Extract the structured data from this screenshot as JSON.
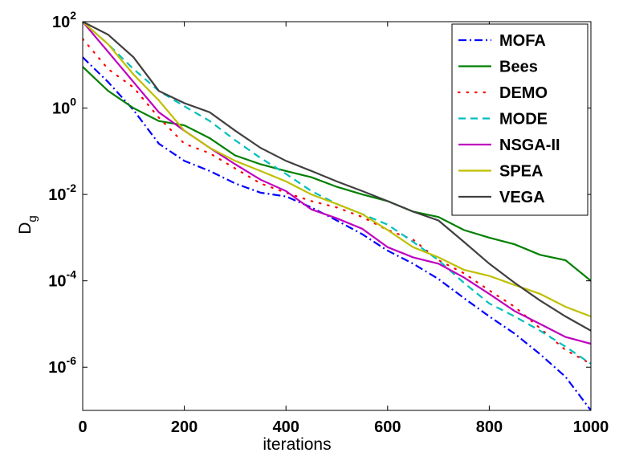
{
  "chart_data": {
    "type": "line",
    "xlabel": "iterations",
    "ylabel": "D",
    "ylabel_subscript": "g",
    "xlim": [
      0,
      1000
    ],
    "ylim": [
      1e-07,
      100
    ],
    "yscale": "log",
    "xticks": [
      "0",
      "200",
      "400",
      "600",
      "800",
      "1000"
    ],
    "yticks": [
      {
        "mantissa": "10",
        "exp": "2"
      },
      {
        "mantissa": "10",
        "exp": "0"
      },
      {
        "mantissa": "10",
        "exp": "-2"
      },
      {
        "mantissa": "10",
        "exp": "-4"
      },
      {
        "mantissa": "10",
        "exp": "-6"
      }
    ],
    "grid": false,
    "legend_position": "top-right",
    "series": [
      {
        "name": "MOFA",
        "color": "#0000ff",
        "style": "dashdot",
        "x": [
          0,
          50,
          100,
          150,
          200,
          250,
          300,
          350,
          400,
          450,
          500,
          550,
          600,
          650,
          700,
          750,
          800,
          850,
          900,
          950,
          1000
        ],
        "y": [
          15,
          4,
          0.9,
          0.15,
          0.06,
          0.035,
          0.018,
          0.011,
          0.009,
          0.005,
          0.0025,
          0.0012,
          0.0005,
          0.00025,
          0.00011,
          4e-05,
          1.5e-05,
          6e-06,
          2e-06,
          6e-07,
          1e-07
        ]
      },
      {
        "name": "Bees",
        "color": "#008000",
        "style": "solid",
        "x": [
          0,
          50,
          100,
          150,
          200,
          250,
          300,
          350,
          400,
          450,
          500,
          550,
          600,
          650,
          700,
          750,
          800,
          850,
          900,
          950,
          1000
        ],
        "y": [
          9,
          2.5,
          1,
          0.5,
          0.4,
          0.2,
          0.08,
          0.05,
          0.035,
          0.025,
          0.015,
          0.01,
          0.007,
          0.004,
          0.003,
          0.0015,
          0.001,
          0.0007,
          0.0004,
          0.0003,
          0.0001
        ]
      },
      {
        "name": "DEMO",
        "color": "#ff0000",
        "style": "dotted",
        "x": [
          0,
          50,
          100,
          150,
          200,
          250,
          300,
          350,
          400,
          450,
          500,
          550,
          600,
          650,
          700,
          750,
          800,
          850,
          900,
          950,
          1000
        ],
        "y": [
          40,
          8,
          3,
          0.6,
          0.15,
          0.09,
          0.04,
          0.018,
          0.011,
          0.007,
          0.005,
          0.003,
          0.0015,
          0.0009,
          0.0003,
          0.00015,
          6e-05,
          2.5e-05,
          8e-06,
          2.5e-06,
          1.2e-06
        ]
      },
      {
        "name": "MODE",
        "color": "#00bfbf",
        "style": "dashed",
        "x": [
          0,
          50,
          100,
          150,
          200,
          250,
          300,
          350,
          400,
          450,
          500,
          550,
          600,
          650,
          700,
          750,
          800,
          850,
          900,
          950,
          1000
        ],
        "y": [
          100,
          30,
          8,
          2.5,
          1.1,
          0.5,
          0.18,
          0.07,
          0.03,
          0.012,
          0.006,
          0.0035,
          0.002,
          0.0008,
          0.0003,
          9e-05,
          3e-05,
          1.5e-05,
          7e-06,
          3e-06,
          1.2e-06
        ]
      },
      {
        "name": "NSGA-II",
        "color": "#bf00bf",
        "style": "solid",
        "x": [
          0,
          50,
          100,
          150,
          200,
          250,
          300,
          350,
          400,
          450,
          500,
          550,
          600,
          650,
          700,
          750,
          800,
          850,
          900,
          950,
          1000
        ],
        "y": [
          100,
          20,
          4,
          0.8,
          0.3,
          0.12,
          0.05,
          0.022,
          0.012,
          0.0045,
          0.0028,
          0.0016,
          0.0006,
          0.00035,
          0.00025,
          0.00012,
          5e-05,
          2e-05,
          1e-05,
          5e-06,
          3.5e-06
        ]
      },
      {
        "name": "SPEA",
        "color": "#bfbf00",
        "style": "solid",
        "x": [
          0,
          50,
          100,
          150,
          200,
          250,
          300,
          350,
          400,
          450,
          500,
          550,
          600,
          650,
          700,
          750,
          800,
          850,
          900,
          950,
          1000
        ],
        "y": [
          100,
          30,
          6,
          1.5,
          0.3,
          0.12,
          0.06,
          0.035,
          0.02,
          0.01,
          0.006,
          0.0035,
          0.0015,
          0.0006,
          0.00035,
          0.00018,
          0.00013,
          8e-05,
          5e-05,
          2.5e-05,
          1.5e-05
        ]
      },
      {
        "name": "VEGA",
        "color": "#404040",
        "style": "solid",
        "x": [
          0,
          50,
          100,
          150,
          200,
          250,
          300,
          350,
          400,
          450,
          500,
          550,
          600,
          650,
          700,
          750,
          800,
          850,
          900,
          950,
          1000
        ],
        "y": [
          100,
          50,
          15,
          2.5,
          1.3,
          0.8,
          0.3,
          0.12,
          0.06,
          0.035,
          0.02,
          0.012,
          0.007,
          0.004,
          0.0025,
          0.0008,
          0.00025,
          9e-05,
          3.5e-05,
          1.5e-05,
          7e-06
        ]
      }
    ]
  }
}
